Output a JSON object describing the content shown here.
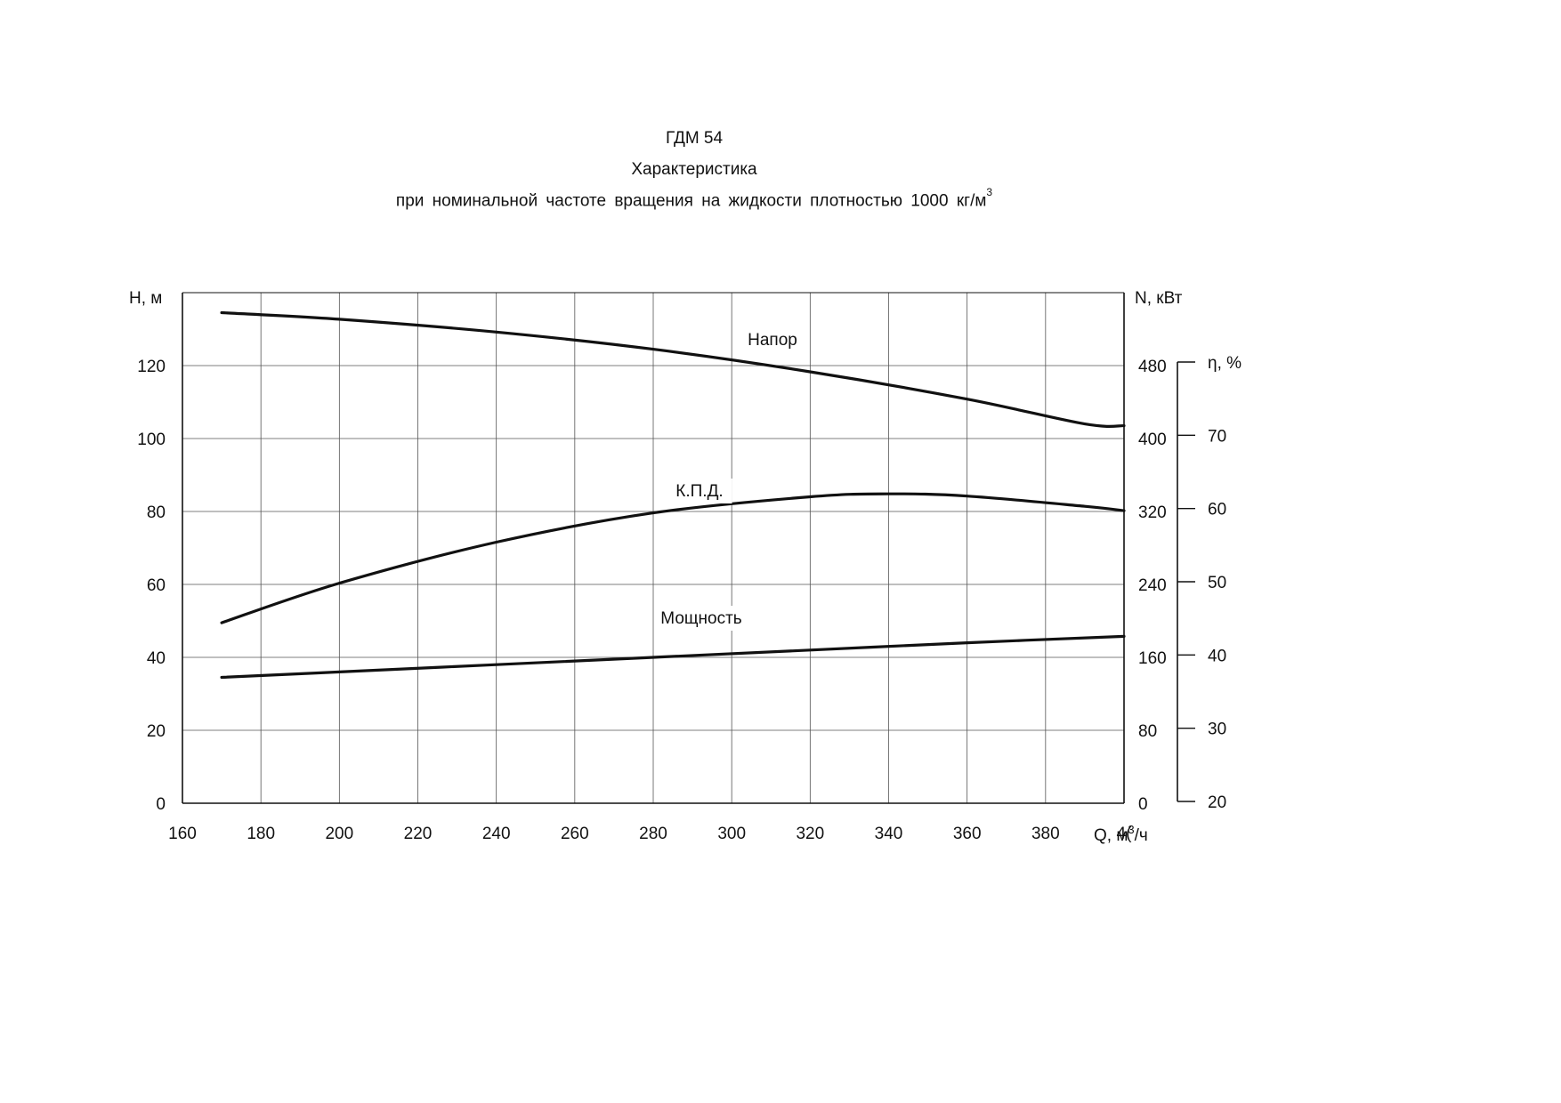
{
  "titles": {
    "line1": "ГДМ 54",
    "line2": "Характеристика",
    "line3": "при номинальной частоте вращения на жидкости плотностью 1000 кг/м",
    "line3_sup": "3"
  },
  "chart_data": {
    "type": "line",
    "x": {
      "label": "Q, м",
      "label_sup": "3",
      "label_tail": "/ч",
      "ticks": [
        "160",
        "180",
        "200",
        "220",
        "240",
        "260",
        "280",
        "300",
        "320",
        "340",
        "360",
        "380",
        "4("
      ],
      "range": [
        160,
        400
      ]
    },
    "y_left": {
      "label": "H, м",
      "ticks": [
        "0",
        "20",
        "40",
        "60",
        "80",
        "100",
        "120"
      ],
      "range": [
        0,
        140
      ]
    },
    "y_right_power": {
      "label": "N, кВт",
      "ticks": [
        "0",
        "80",
        "160",
        "240",
        "320",
        "400",
        "480"
      ],
      "range": [
        0,
        560
      ]
    },
    "y_right_eff": {
      "label": "η, %",
      "ticks": [
        "20",
        "30",
        "40",
        "50",
        "60",
        "70"
      ],
      "range": [
        20,
        80
      ]
    },
    "grid": true,
    "series": [
      {
        "name": "Напор",
        "axis": "H",
        "points": [
          [
            170,
            134.5
          ],
          [
            200,
            132.7
          ],
          [
            240,
            129.2
          ],
          [
            280,
            124.5
          ],
          [
            320,
            118.3
          ],
          [
            360,
            110.8
          ],
          [
            390,
            104.0
          ],
          [
            400,
            103.5
          ]
        ]
      },
      {
        "name": "К.П.Д.",
        "axis": "eta",
        "points": [
          [
            170,
            44.4
          ],
          [
            200,
            49.8
          ],
          [
            240,
            55.4
          ],
          [
            280,
            59.4
          ],
          [
            320,
            61.6
          ],
          [
            340,
            62.0
          ],
          [
            360,
            61.7
          ],
          [
            390,
            60.3
          ],
          [
            400,
            59.7
          ]
        ]
      },
      {
        "name": "Мощность",
        "axis": "N",
        "points": [
          [
            170,
            138
          ],
          [
            200,
            144
          ],
          [
            240,
            152
          ],
          [
            280,
            160
          ],
          [
            320,
            168
          ],
          [
            360,
            176
          ],
          [
            400,
            183
          ]
        ]
      }
    ]
  }
}
